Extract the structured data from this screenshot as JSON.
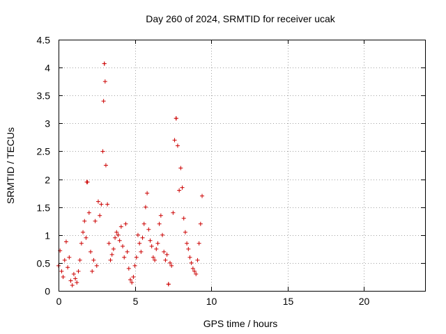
{
  "chart_data": {
    "type": "scatter",
    "title": "Day 260 of 2024, SRMTID for receiver ucak",
    "xlabel": "GPS time / hours",
    "ylabel": "SRMTID / TECUs",
    "xlim": [
      0,
      24
    ],
    "ylim": [
      0,
      4.5
    ],
    "x_ticks": [
      0,
      5,
      10,
      15,
      20
    ],
    "y_ticks": [
      0,
      0.5,
      1,
      1.5,
      2,
      2.5,
      3,
      3.5,
      4,
      4.5
    ],
    "x_tick_labels": [
      "0",
      "5",
      "10",
      "15",
      "20"
    ],
    "y_tick_labels": [
      "0",
      "0.5",
      "1",
      "1.5",
      "2",
      "2.5",
      "3",
      "3.5",
      "4",
      "4.5"
    ],
    "grid": true,
    "marker": "plus",
    "color": "#cc0000",
    "data_extent_hours": [
      0,
      9.4
    ],
    "notable_points": [
      {
        "x": 3.0,
        "y": 4.07
      },
      {
        "x": 7.7,
        "y": 3.09
      },
      {
        "x": 7.2,
        "y": 0.12
      },
      {
        "x": 1.85,
        "y": 1.95
      }
    ],
    "series": [
      {
        "name": "SRMTID",
        "x": [
          0.0,
          0.1,
          0.2,
          0.3,
          0.4,
          0.5,
          0.6,
          0.7,
          0.8,
          0.9,
          1.0,
          1.1,
          1.2,
          1.3,
          1.4,
          1.5,
          1.6,
          1.7,
          1.8,
          1.9,
          2.0,
          2.1,
          2.2,
          2.3,
          2.4,
          2.5,
          2.6,
          2.7,
          2.8,
          2.9,
          2.95,
          3.0,
          3.05,
          3.1,
          3.2,
          3.3,
          3.4,
          3.5,
          3.6,
          3.7,
          3.8,
          3.9,
          4.0,
          4.1,
          4.2,
          4.3,
          4.4,
          4.5,
          4.6,
          4.7,
          4.8,
          4.9,
          5.0,
          5.1,
          5.2,
          5.3,
          5.4,
          5.5,
          5.6,
          5.7,
          5.8,
          5.9,
          6.0,
          6.1,
          6.2,
          6.3,
          6.4,
          6.5,
          6.6,
          6.7,
          6.8,
          6.9,
          7.0,
          7.1,
          7.2,
          7.3,
          7.4,
          7.5,
          7.6,
          7.7,
          7.8,
          7.9,
          8.0,
          8.1,
          8.2,
          8.3,
          8.4,
          8.5,
          8.6,
          8.7,
          8.8,
          8.9,
          9.0,
          9.1,
          9.2,
          9.3,
          9.4
        ],
        "y": [
          0.45,
          0.72,
          0.35,
          0.25,
          0.55,
          0.88,
          0.42,
          0.6,
          0.18,
          0.1,
          0.3,
          0.22,
          0.15,
          0.35,
          0.55,
          0.85,
          1.05,
          1.25,
          0.95,
          1.95,
          1.4,
          0.7,
          0.35,
          0.55,
          1.25,
          0.45,
          1.6,
          1.35,
          1.55,
          2.5,
          3.4,
          4.07,
          3.75,
          2.25,
          1.55,
          0.85,
          0.55,
          0.65,
          0.75,
          0.95,
          1.05,
          1.0,
          0.9,
          1.15,
          0.8,
          0.6,
          1.2,
          0.7,
          0.4,
          0.2,
          0.15,
          0.25,
          0.45,
          0.6,
          1.0,
          0.85,
          0.7,
          0.95,
          1.2,
          1.5,
          1.75,
          1.1,
          0.9,
          0.8,
          0.6,
          0.55,
          0.75,
          0.85,
          1.2,
          1.35,
          1.0,
          0.7,
          0.55,
          0.65,
          0.12,
          0.5,
          0.45,
          1.4,
          2.7,
          3.09,
          2.6,
          1.8,
          2.2,
          1.85,
          1.3,
          1.05,
          0.85,
          0.75,
          0.6,
          0.5,
          0.4,
          0.35,
          0.3,
          0.55,
          0.85,
          1.2,
          1.7
        ]
      }
    ]
  }
}
